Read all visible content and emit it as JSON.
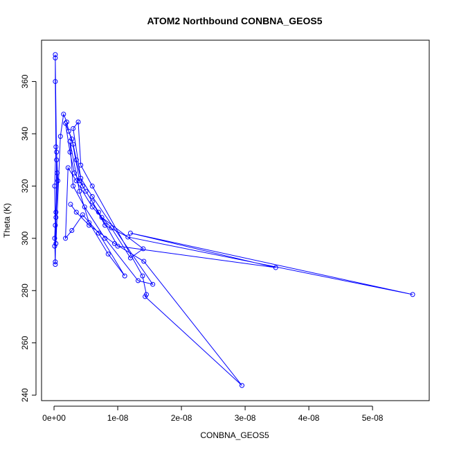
{
  "chart_data": {
    "type": "line",
    "title": "ATOM2 Northbound CONBNA_GEOS5",
    "x_label": "CONBNA_GEOS5",
    "y_label": "Theta (K)",
    "color": "#0000ff",
    "markers": "open-circle",
    "x": [
      1e-10,
      2e-10,
      1e-10,
      3e-10,
      2e-10,
      2e-10,
      2e-10,
      4e-10,
      3e-10,
      2e-10,
      2e-10,
      1e-10,
      5e-10,
      4e-10,
      6e-10,
      3e-10,
      3e-10,
      1e-09,
      1.5e-09,
      2e-09,
      2.3e-09,
      3e-09,
      3.5e-09,
      4.5e-09,
      6e-09,
      8e-09,
      1.16e-08,
      5.63e-08,
      1.2e-08,
      3.48e-08,
      1e-08,
      7e-09,
      4e-09,
      2.8e-09,
      1.8e-09,
      2.5e-09,
      3.2e-09,
      5e-09,
      7.5e-09,
      1.4e-08,
      1.2e-08,
      9e-09,
      6e-09,
      3.5e-09,
      2.2e-09,
      1.8e-09,
      2.8e-09,
      4.5e-09,
      7e-09,
      1.11e-08,
      8.5e-09,
      5.5e-09,
      4e-09,
      2.5e-09,
      3e-09,
      4.8e-09,
      8e-09,
      1.32e-08,
      1.55e-08,
      6e-09,
      4.2e-09,
      3e-09,
      3.8e-09,
      4.2e-09,
      6e-09,
      1.39e-08,
      1.45e-08,
      1.43e-08,
      2.95e-08,
      1.41e-08,
      9.5e-09,
      5.5e-09,
      3.5e-09,
      2.6e-09
    ],
    "y": [
      297,
      305,
      320,
      335,
      360,
      370.3,
      369,
      330,
      310,
      291,
      290,
      300,
      325,
      333,
      322,
      308,
      298,
      339,
      347.5,
      344.5,
      341,
      336,
      330,
      320,
      314,
      305,
      300.5,
      278.5,
      302,
      288.8,
      297,
      310,
      322,
      338,
      344,
      333,
      325,
      318,
      308,
      296,
      292.5,
      304,
      312,
      322,
      327,
      300,
      303,
      309,
      302,
      285.6,
      294,
      306,
      318,
      337,
      320,
      312,
      300,
      283.8,
      282.4,
      316,
      323,
      342,
      344.5,
      328,
      320,
      285.6,
      278.5,
      277.7,
      243.7,
      291.2,
      298,
      305,
      310,
      313
    ],
    "xlim": [
      -1.96e-09,
      5.89e-08
    ],
    "ylim": [
      237.9,
      375.8
    ],
    "xticks": [
      {
        "value": 0,
        "label": "0e+00"
      },
      {
        "value": 1e-08,
        "label": "1e-08"
      },
      {
        "value": 2e-08,
        "label": "2e-08"
      },
      {
        "value": 3e-08,
        "label": "3e-08"
      },
      {
        "value": 4e-08,
        "label": "4e-08"
      },
      {
        "value": 5e-08,
        "label": "5e-08"
      }
    ],
    "yticks": [
      240,
      260,
      280,
      300,
      320,
      340,
      360
    ]
  }
}
